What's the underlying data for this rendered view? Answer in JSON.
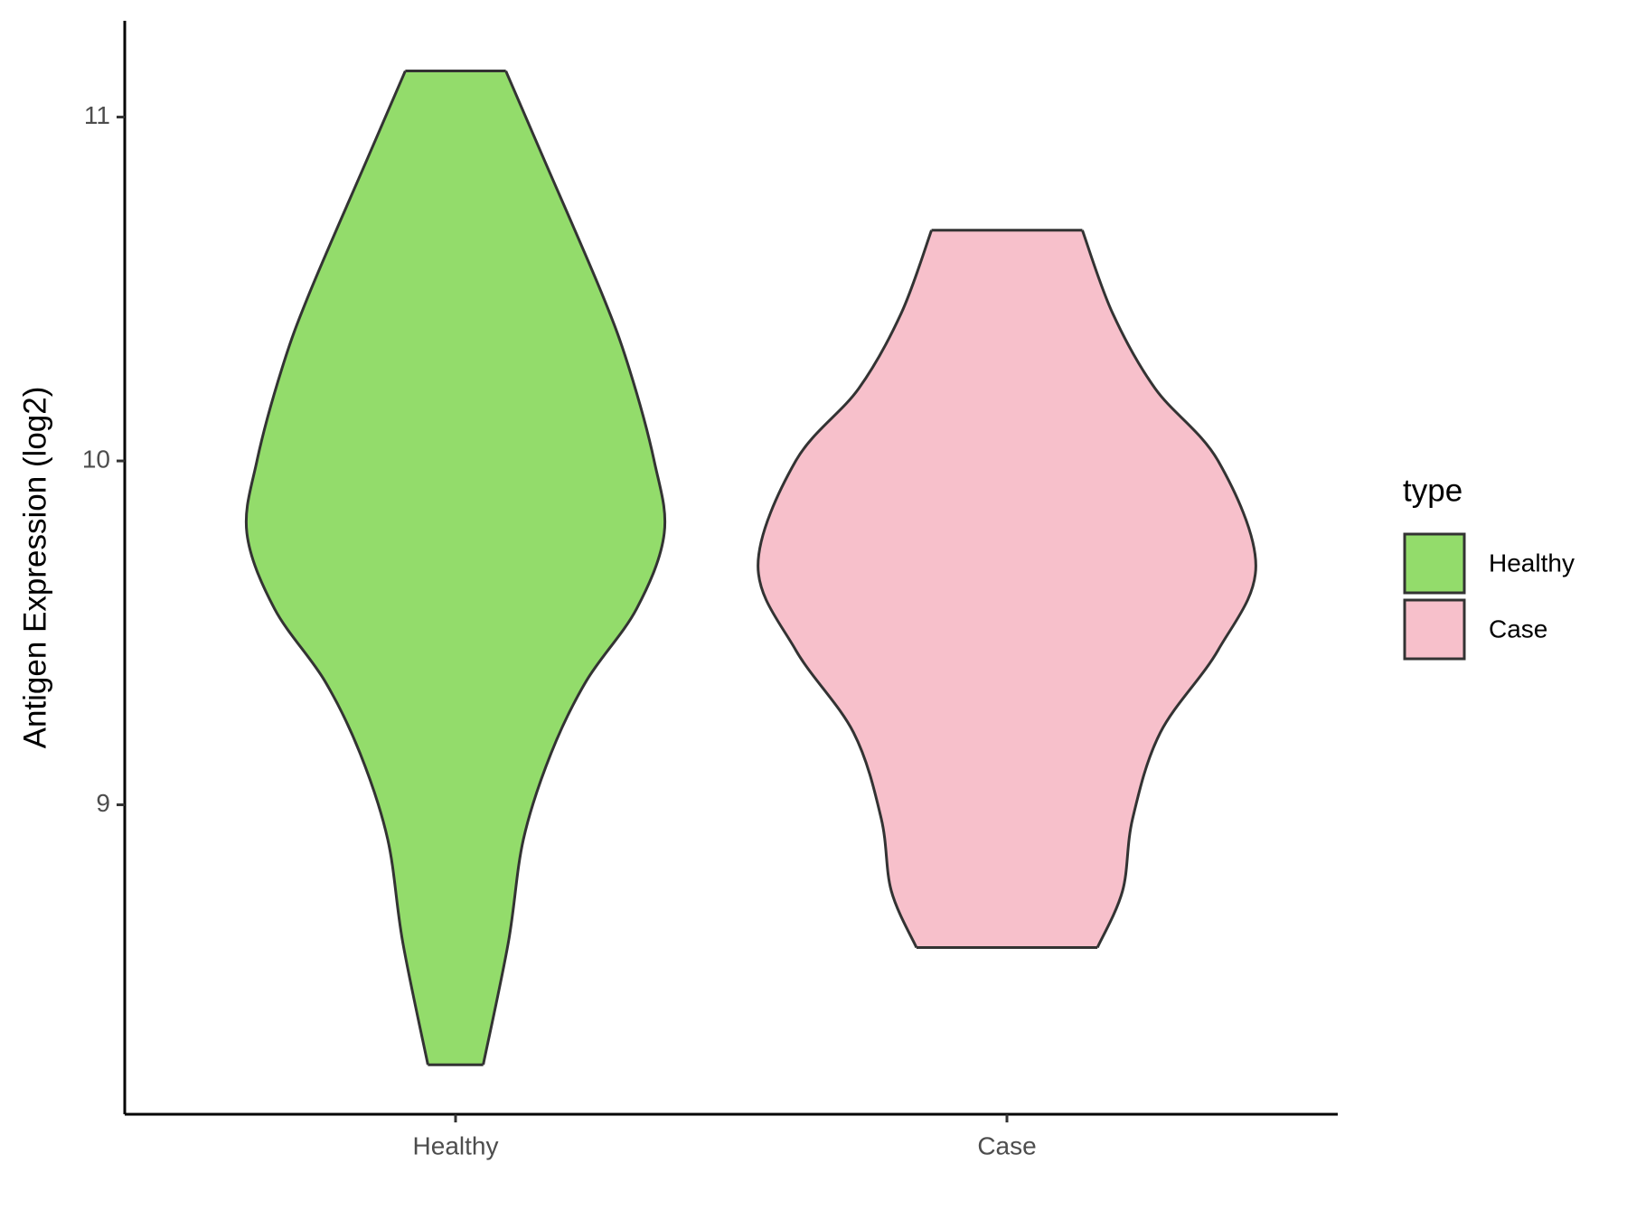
{
  "chart_data": {
    "type": "violin",
    "y_label": "Antigen Expression (log2)",
    "categories": [
      "Healthy",
      "Case"
    ],
    "series": [
      {
        "name": "Healthy",
        "color": "#93dc6b",
        "y": [
          11.134,
          10.88,
          10.49,
          10.27,
          10.0,
          9.79,
          9.57,
          9.36,
          9.15,
          8.9,
          8.6,
          8.244
        ],
        "density": [
          0.2,
          0.35,
          0.58,
          0.69,
          0.79,
          0.83,
          0.72,
          0.52,
          0.38,
          0.27,
          0.21,
          0.11
        ]
      },
      {
        "name": "Case",
        "color": "#f7c0cb",
        "y": [
          10.671,
          10.43,
          10.21,
          10.0,
          9.695,
          9.45,
          9.21,
          8.96,
          8.75,
          8.585
        ],
        "density": [
          0.3,
          0.42,
          0.59,
          0.84,
          0.99,
          0.84,
          0.61,
          0.5,
          0.46,
          0.36
        ]
      }
    ],
    "ylim": [
      8.1,
      11.28
    ],
    "yticks": [
      9,
      10,
      11
    ],
    "legend_title": "type",
    "legend": "right"
  }
}
